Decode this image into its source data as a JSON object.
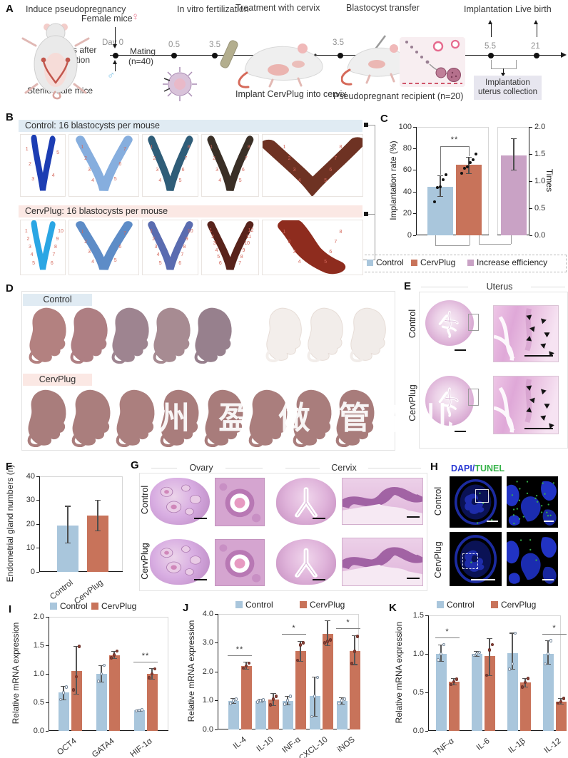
{
  "colors": {
    "control": "#a9c6dc",
    "cervplug": "#c8735a",
    "increase": "#c9a2c5",
    "header_blue": "#e0ebf3",
    "header_pink": "#fbe8e4",
    "collection_box": "#e7e6ef",
    "dapi_blue": "#2b3bd4",
    "tunel_green": "#37b34a",
    "site_number_red": "#d4675a",
    "female_pink": "#e87a90",
    "male_blue": "#7ec3e8"
  },
  "panelA": {
    "label": "A",
    "step_titles": [
      "Induce pseudopregnancy",
      "In vitro fertilization",
      "Treatment with cervix",
      "Blastocyst transfer",
      "Implantation",
      "Live birth"
    ],
    "female_mice": "Female mice",
    "female_symbol": "♀",
    "male_symbol": "♂",
    "castration_line1": "2 weeks after",
    "castration_line2": "castration",
    "sterile_male": "Sterile male mice",
    "day0": "Day 0",
    "mating_line1": "Mating",
    "mating_line2": "(n=40)",
    "timeline_ticks": [
      "0.5",
      "3.5",
      "3.5",
      "5.5",
      "21"
    ],
    "implant_caption": "Implant CervPlug into cervix",
    "recipient_caption": "Pseudopregnant recipient (n=20)",
    "collection_line1": "Implantation",
    "collection_line2": "uterus collection"
  },
  "panelB": {
    "label": "B",
    "control_header": "Control: 16 blastocysts per mouse",
    "cervplug_header": "CervPlug: 16 blastocysts per mouse",
    "control_tiles": [
      {
        "color": "#1c3db3",
        "sites": 5,
        "shape": "v-narrow"
      },
      {
        "color": "#86aede",
        "sites": 7,
        "shape": "v"
      },
      {
        "color": "#2f5d78",
        "sites": 8,
        "shape": "v"
      },
      {
        "color": "#3a2f26",
        "sites": 8,
        "shape": "v"
      },
      {
        "color": "#6e3223",
        "sites": 8,
        "shape": "v-wide"
      }
    ],
    "cervplug_tiles": [
      {
        "color": "#2aa6e4",
        "sites": 10,
        "shape": "v-narrow"
      },
      {
        "color": "#5d8cc7",
        "sites": 7,
        "shape": "v"
      },
      {
        "color": "#5a6cb0",
        "sites": 10,
        "shape": "v"
      },
      {
        "color": "#58231b",
        "sites": 12,
        "shape": "v"
      },
      {
        "color": "#8e2c1e",
        "sites": 8,
        "shape": "blob"
      }
    ]
  },
  "panelC": {
    "label": "C"
  },
  "panelD": {
    "label": "D",
    "control_label": "Control",
    "cervplug_label": "CervPlug",
    "watermark": "州 盈 做 管架儿",
    "control_pup_colors": [
      "#b38180",
      "#ae7f83",
      "#9e8490",
      "#a78b92",
      "#97808d"
    ],
    "control_pale_colors": [
      "#f3eeeb",
      "#f2edea",
      "#f1ece9"
    ],
    "cervplug_pup_colors": [
      "#a97d7c",
      "#aa7e7d",
      "#ab7f7e",
      "#a97d7c",
      "#a87c7b",
      "#aa7e7d",
      "#a97d7c",
      "#a87c7b"
    ]
  },
  "panelE": {
    "label": "E",
    "title": "Uterus",
    "row_labels": [
      "Control",
      "CervPlug"
    ]
  },
  "panelF": {
    "label": "F"
  },
  "panelG": {
    "label": "G",
    "col_headers": [
      "Ovary",
      "Cervix"
    ],
    "row_labels": [
      "Control",
      "CervPlug"
    ]
  },
  "panelH": {
    "label": "H",
    "title_dapi": "DAPI",
    "title_slash": "/",
    "title_tunel": "TUNEL",
    "row_labels": [
      "Control",
      "CervPlug"
    ]
  },
  "panelI": {
    "label": "I"
  },
  "panelJ": {
    "label": "J"
  },
  "panelK": {
    "label": "K"
  },
  "chart_data": [
    {
      "panel": "C",
      "type": "bar",
      "left": {
        "ylabel": "Implantation rate (%)",
        "ylim": [
          0,
          100
        ],
        "yticks": [
          "0",
          "20",
          "40",
          "60",
          "80",
          "100"
        ],
        "categories": [
          "Control",
          "CervPlug"
        ],
        "values": [
          45,
          65
        ],
        "errors": [
          [
            36,
            55
          ],
          [
            57,
            72
          ]
        ],
        "dots": [
          [
            31,
            44,
            45,
            51,
            56
          ],
          [
            57,
            62,
            63,
            67,
            70,
            75
          ]
        ],
        "sig": "**"
      },
      "right": {
        "ylabel": "Times",
        "ylim": [
          0,
          2
        ],
        "yticks": [
          "0.0",
          "0.5",
          "1.0",
          "1.5",
          "2.0"
        ],
        "categories": [
          "Increase efficiency"
        ],
        "values": [
          1.48
        ],
        "errors": [
          [
            1.2,
            1.78
          ]
        ]
      },
      "legend": [
        "Control",
        "CervPlug",
        "Increase efficiency"
      ]
    },
    {
      "panel": "F",
      "type": "bar",
      "ylabel": "Endometrial gland numbers (n)",
      "ylim": [
        0,
        40
      ],
      "yticks": [
        "0",
        "10",
        "20",
        "30",
        "40"
      ],
      "categories": [
        "Control",
        "CervPlug"
      ],
      "values": [
        19.5,
        23.5
      ],
      "errors": [
        [
          12,
          27.5
        ],
        [
          17.3,
          30
        ]
      ]
    },
    {
      "panel": "I",
      "type": "grouped-bar",
      "ylabel": "Relative mRNA expression",
      "ylim": [
        0,
        2
      ],
      "yticks": [
        "0.0",
        "0.5",
        "1.0",
        "1.5",
        "2.0"
      ],
      "categories": [
        "OCT4",
        "GATA4",
        "HIF-1α"
      ],
      "series": [
        {
          "name": "Control",
          "values": [
            0.67,
            1.0,
            0.36
          ],
          "errors": [
            [
              0.55,
              0.78
            ],
            [
              0.86,
              1.15
            ],
            [
              0.34,
              0.37
            ]
          ],
          "dots": [
            [
              0.55,
              0.67,
              0.77
            ],
            [
              0.87,
              1.0,
              1.15
            ],
            [
              0.35,
              0.36,
              0.37
            ]
          ]
        },
        {
          "name": "CervPlug",
          "values": [
            1.05,
            1.33,
            1.0
          ],
          "errors": [
            [
              0.65,
              1.48
            ],
            [
              1.27,
              1.4
            ],
            [
              0.91,
              1.09
            ]
          ],
          "dots": [
            [
              0.72,
              0.95,
              1.48
            ],
            [
              1.28,
              1.33,
              1.4
            ],
            [
              0.93,
              1.0,
              1.09
            ]
          ]
        }
      ],
      "sig": [
        {
          "group": 2,
          "text": "**"
        }
      ],
      "legend": [
        "Control",
        "CervPlug"
      ]
    },
    {
      "panel": "J",
      "type": "grouped-bar",
      "ylabel": "Relative mRNA expression",
      "ylim": [
        0,
        4
      ],
      "yticks": [
        "0.0",
        "1.0",
        "2.0",
        "3.0",
        "4.0"
      ],
      "categories": [
        "IL-4",
        "IL-10",
        "INF-α",
        "CXCL-10",
        "iNOS"
      ],
      "series": [
        {
          "name": "Control",
          "values": [
            1.0,
            1.0,
            1.0,
            1.17,
            1.0
          ],
          "errors": [
            [
              0.9,
              1.08
            ],
            [
              0.95,
              1.05
            ],
            [
              0.85,
              1.15
            ],
            [
              0.45,
              1.82
            ],
            [
              0.88,
              1.1
            ]
          ],
          "dots": [
            [
              0.9,
              1.0,
              1.05
            ],
            [
              0.95,
              1.0,
              1.03
            ],
            [
              0.88,
              1.0,
              1.15
            ],
            [
              0.45,
              1.15,
              1.8
            ],
            [
              0.9,
              1.0,
              1.05
            ]
          ]
        },
        {
          "name": "CervPlug",
          "values": [
            2.2,
            1.03,
            2.72,
            3.3,
            2.72
          ],
          "errors": [
            [
              2.08,
              2.33
            ],
            [
              0.82,
              1.25
            ],
            [
              2.37,
              3.05
            ],
            [
              2.9,
              3.77
            ],
            [
              2.25,
              3.25
            ]
          ],
          "dots": [
            [
              2.12,
              2.2,
              2.3
            ],
            [
              0.85,
              1.05,
              1.15
            ],
            [
              2.4,
              2.92,
              3.0
            ],
            [
              3.0,
              3.05,
              3.1
            ],
            [
              2.28,
              2.7,
              3.22
            ]
          ]
        }
      ],
      "sig": [
        {
          "group": 0,
          "text": "**"
        },
        {
          "group": 2,
          "text": "*"
        },
        {
          "group": 4,
          "text": "*"
        }
      ],
      "legend": [
        "Control",
        "CervPlug"
      ]
    },
    {
      "panel": "K",
      "type": "grouped-bar",
      "ylabel": "Relative mRNA expression",
      "ylim": [
        0,
        1.5
      ],
      "yticks": [
        "0.0",
        "0.5",
        "1.0",
        "1.5"
      ],
      "categories": [
        "TNF-α",
        "IL-6",
        "IL-1β",
        "IL-12"
      ],
      "series": [
        {
          "name": "Control",
          "values": [
            1.0,
            1.0,
            1.01,
            1.0
          ],
          "errors": [
            [
              0.9,
              1.12
            ],
            [
              0.97,
              1.03
            ],
            [
              0.8,
              1.27
            ],
            [
              0.87,
              1.17
            ]
          ],
          "dots": [
            [
              0.92,
              1.0,
              1.12
            ],
            [
              0.98,
              1.0,
              1.02
            ],
            [
              0.8,
              0.87,
              1.27
            ],
            [
              0.87,
              1.0,
              1.17
            ]
          ]
        },
        {
          "name": "CervPlug",
          "values": [
            0.64,
            0.97,
            0.63,
            0.38
          ],
          "errors": [
            [
              0.6,
              0.68
            ],
            [
              0.72,
              1.2
            ],
            [
              0.57,
              0.68
            ],
            [
              0.35,
              0.42
            ]
          ],
          "dots": [
            [
              0.6,
              0.64,
              0.67
            ],
            [
              0.72,
              1.05,
              1.12
            ],
            [
              0.57,
              0.63,
              0.68
            ],
            [
              0.36,
              0.38,
              0.42
            ]
          ]
        }
      ],
      "sig": [
        {
          "group": 0,
          "text": "*"
        },
        {
          "group": 3,
          "text": "*"
        }
      ],
      "legend": [
        "Control",
        "CervPlug"
      ]
    }
  ]
}
